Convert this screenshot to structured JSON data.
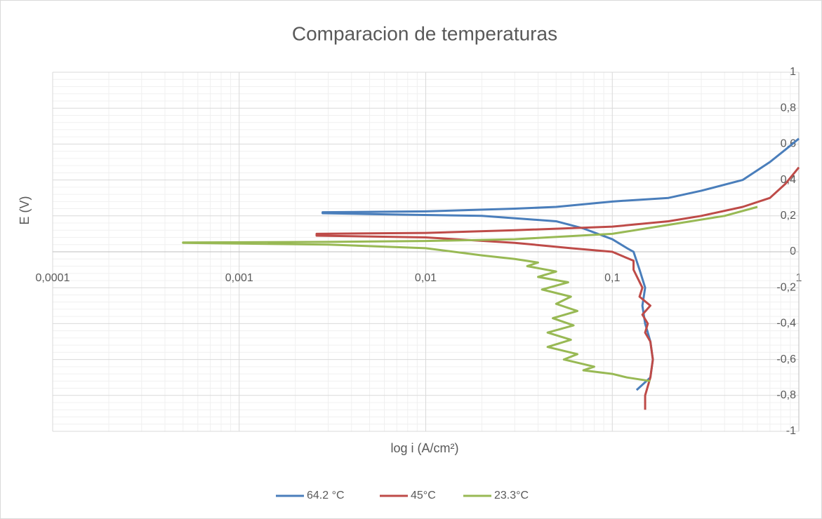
{
  "chart_data": {
    "type": "line",
    "title": "Comparacion de temperaturas",
    "x_label": "log i (A/cm²)",
    "y_label": "E (V)",
    "xscale": "log",
    "grid": true,
    "minor_grid": true,
    "legend": "bottom",
    "xlim": [
      0.0001,
      1
    ],
    "ylim": [
      -1,
      1
    ],
    "xticks": [
      {
        "value": 0.0001,
        "label": "0,0001"
      },
      {
        "value": 0.001,
        "label": "0,001"
      },
      {
        "value": 0.01,
        "label": "0,01"
      },
      {
        "value": 0.1,
        "label": "0,1"
      },
      1
    ],
    "yticks": [
      1,
      {
        "value": 0.8,
        "label": "0,8"
      },
      {
        "value": 0.6,
        "label": "0,6"
      },
      {
        "value": 0.4,
        "label": "0,4"
      },
      {
        "value": 0.2,
        "label": "0,2"
      },
      0,
      {
        "value": -0.2,
        "label": "-0,2"
      },
      {
        "value": -0.4,
        "label": "-0,4"
      },
      {
        "value": -0.6,
        "label": "-0,6"
      },
      {
        "value": -0.8,
        "label": "-0,8"
      },
      -1
    ],
    "series": [
      {
        "name": "64.2 °C",
        "color": "#4a7ebb",
        "x": [
          0.135,
          0.16,
          0.165,
          0.16,
          0.155,
          0.15,
          0.145,
          0.15,
          0.14,
          0.13,
          0.12,
          0.1,
          0.07,
          0.05,
          0.02,
          0.005,
          0.0028,
          0.0028,
          0.01,
          0.03,
          0.05,
          0.1,
          0.2,
          0.3,
          0.5,
          0.7,
          0.85,
          1
        ],
        "values": [
          -0.77,
          -0.7,
          -0.6,
          -0.5,
          -0.45,
          -0.4,
          -0.3,
          -0.2,
          -0.1,
          0,
          0.02,
          0.07,
          0.13,
          0.17,
          0.2,
          0.21,
          0.215,
          0.22,
          0.225,
          0.24,
          0.25,
          0.28,
          0.3,
          0.34,
          0.4,
          0.5,
          0.57,
          0.63
        ]
      },
      {
        "name": "45°C",
        "color": "#be4b48",
        "x": [
          0.15,
          0.15,
          0.16,
          0.165,
          0.16,
          0.15,
          0.155,
          0.145,
          0.16,
          0.14,
          0.145,
          0.13,
          0.13,
          0.1,
          0.06,
          0.03,
          0.01,
          0.0026,
          0.0026,
          0.01,
          0.03,
          0.1,
          0.2,
          0.3,
          0.5,
          0.7,
          0.85,
          1
        ],
        "values": [
          -0.88,
          -0.8,
          -0.7,
          -0.6,
          -0.5,
          -0.45,
          -0.4,
          -0.35,
          -0.3,
          -0.25,
          -0.2,
          -0.1,
          -0.05,
          0,
          0.02,
          0.05,
          0.08,
          0.09,
          0.1,
          0.105,
          0.12,
          0.14,
          0.17,
          0.2,
          0.25,
          0.3,
          0.38,
          0.47
        ]
      },
      {
        "name": "23.3°C",
        "color": "#98b954",
        "x": [
          0.16,
          0.12,
          0.1,
          0.07,
          0.08,
          0.055,
          0.065,
          0.045,
          0.06,
          0.045,
          0.062,
          0.048,
          0.065,
          0.05,
          0.06,
          0.042,
          0.058,
          0.04,
          0.05,
          0.035,
          0.04,
          0.03,
          0.02,
          0.01,
          0.003,
          0.0005,
          0.0005,
          0.003,
          0.01,
          0.03,
          0.1,
          0.2,
          0.4,
          0.6
        ],
        "values": [
          -0.72,
          -0.7,
          -0.68,
          -0.66,
          -0.64,
          -0.6,
          -0.57,
          -0.53,
          -0.49,
          -0.45,
          -0.41,
          -0.37,
          -0.33,
          -0.29,
          -0.25,
          -0.21,
          -0.17,
          -0.14,
          -0.11,
          -0.08,
          -0.06,
          -0.04,
          -0.02,
          0.02,
          0.04,
          0.05,
          0.052,
          0.055,
          0.06,
          0.07,
          0.1,
          0.15,
          0.2,
          0.25
        ]
      }
    ]
  }
}
